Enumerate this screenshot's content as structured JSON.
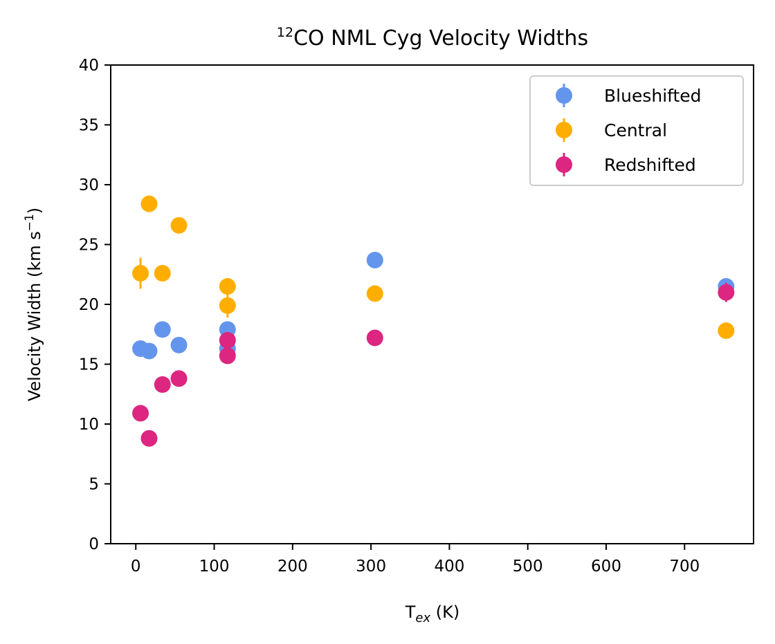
{
  "chart_data": {
    "type": "scatter",
    "title": {
      "sup": "12",
      "main": "CO NML Cyg Velocity Widths"
    },
    "xlabel": {
      "main": "T",
      "sub": "ex",
      "unit": " (K)"
    },
    "ylabel": {
      "main": "Velocity Width (km s",
      "sup": "−1",
      "end": ")"
    },
    "xlim": [
      -32,
      788
    ],
    "ylim": [
      0,
      40
    ],
    "xticks": [
      0,
      100,
      200,
      300,
      400,
      500,
      600,
      700
    ],
    "yticks": [
      0,
      5,
      10,
      15,
      20,
      25,
      30,
      35,
      40
    ],
    "grid": false,
    "legend": {
      "position": "top-right",
      "frame": true
    },
    "series": [
      {
        "name": "Blueshifted",
        "color": "#6495ed",
        "points": [
          {
            "x": 6,
            "y": 16.3,
            "err": 0.3
          },
          {
            "x": 17,
            "y": 16.1,
            "err": 0.3
          },
          {
            "x": 34,
            "y": 17.9,
            "err": 0.3
          },
          {
            "x": 55,
            "y": 16.6,
            "err": 0.3
          },
          {
            "x": 117,
            "y": 17.9,
            "err": 0.3
          },
          {
            "x": 117,
            "y": 16.3,
            "err": 0.3
          },
          {
            "x": 305,
            "y": 23.7,
            "err": 0.3
          },
          {
            "x": 753,
            "y": 21.5,
            "err": 0.3
          }
        ]
      },
      {
        "name": "Central",
        "color": "#ffae00",
        "points": [
          {
            "x": 6,
            "y": 22.6,
            "err": 1.3
          },
          {
            "x": 17,
            "y": 28.4,
            "err": 0.3
          },
          {
            "x": 34,
            "y": 22.6,
            "err": 0.3
          },
          {
            "x": 55,
            "y": 26.6,
            "err": 0.3
          },
          {
            "x": 117,
            "y": 21.5,
            "err": 0.3
          },
          {
            "x": 117,
            "y": 19.9,
            "err": 1.0
          },
          {
            "x": 305,
            "y": 20.9,
            "err": 0.3
          },
          {
            "x": 753,
            "y": 17.8,
            "err": 0.3
          }
        ]
      },
      {
        "name": "Redshifted",
        "color": "#dc267f",
        "points": [
          {
            "x": 6,
            "y": 10.9,
            "err": 0.3
          },
          {
            "x": 17,
            "y": 8.8,
            "err": 0.3
          },
          {
            "x": 34,
            "y": 13.3,
            "err": 0.3
          },
          {
            "x": 55,
            "y": 13.8,
            "err": 0.3
          },
          {
            "x": 117,
            "y": 17.0,
            "err": 0.3
          },
          {
            "x": 117,
            "y": 15.7,
            "err": 0.3
          },
          {
            "x": 305,
            "y": 17.2,
            "err": 0.3
          },
          {
            "x": 753,
            "y": 21.0,
            "err": 0.8
          }
        ]
      }
    ]
  }
}
